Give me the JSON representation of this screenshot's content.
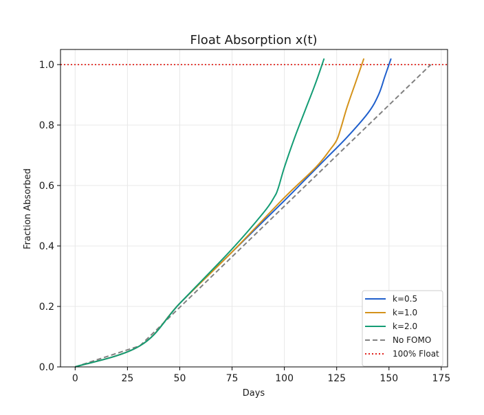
{
  "chart_data": {
    "type": "line",
    "title": "Float Absorption x(t)",
    "xlabel": "Days",
    "ylabel": "Fraction Absorbed",
    "xlim": [
      -7,
      178
    ],
    "ylim": [
      0,
      1.05
    ],
    "xticks": [
      0,
      25,
      50,
      75,
      100,
      125,
      150,
      175
    ],
    "yticks": [
      0.0,
      0.2,
      0.4,
      0.6,
      0.8,
      1.0
    ],
    "xtick_labels": [
      "0",
      "25",
      "50",
      "75",
      "100",
      "125",
      "150",
      "175"
    ],
    "ytick_labels": [
      "0.0",
      "0.2",
      "0.4",
      "0.6",
      "0.8",
      "1.0"
    ],
    "grid": true,
    "legend_position": "bottom-right",
    "series": [
      {
        "name": "k=0.5",
        "color": "#1f5fcc",
        "style": "solid",
        "x": [
          0,
          31,
          50,
          75,
          100,
          110,
          120,
          130,
          140,
          145,
          148,
          151
        ],
        "y": [
          0,
          0.07,
          0.21,
          0.38,
          0.55,
          0.62,
          0.69,
          0.76,
          0.84,
          0.9,
          0.96,
          1.02
        ]
      },
      {
        "name": "k=1.0",
        "color": "#d4921a",
        "style": "solid",
        "x": [
          0,
          31,
          50,
          75,
          100,
          115,
          122,
          125,
          127,
          130,
          134,
          138
        ],
        "y": [
          0,
          0.07,
          0.21,
          0.38,
          0.56,
          0.66,
          0.72,
          0.75,
          0.79,
          0.86,
          0.94,
          1.02
        ]
      },
      {
        "name": "k=2.0",
        "color": "#139c74",
        "style": "solid",
        "x": [
          0,
          31,
          50,
          75,
          90,
          95,
          97,
          100,
          105,
          110,
          115,
          119
        ],
        "y": [
          0,
          0.07,
          0.21,
          0.39,
          0.51,
          0.56,
          0.59,
          0.66,
          0.76,
          0.85,
          0.94,
          1.02
        ]
      },
      {
        "name": "No FOMO",
        "color": "#808080",
        "style": "dashed",
        "x": [
          0,
          31,
          170
        ],
        "y": [
          0,
          0.07,
          1.0
        ]
      }
    ],
    "reference_lines": [
      {
        "name": "100% Float",
        "y": 1.0,
        "color": "#e0201a",
        "style": "dotted"
      }
    ]
  }
}
